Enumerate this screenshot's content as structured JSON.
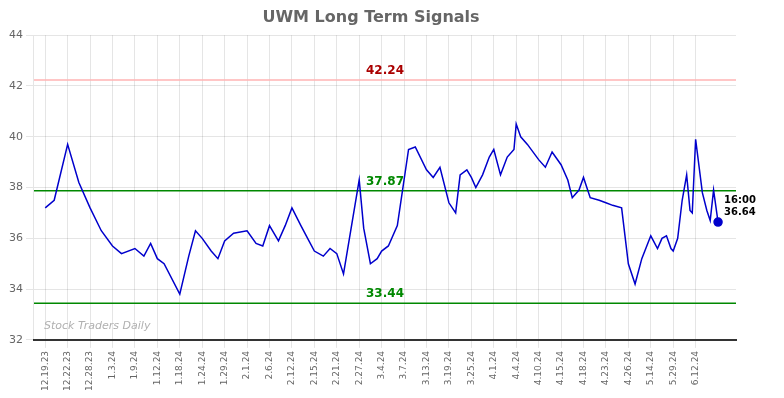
{
  "chart_data": {
    "type": "line",
    "title": "UWM Long Term Signals",
    "x": [
      0,
      0.4,
      1.0,
      1.5,
      2.0,
      2.5,
      3.0,
      3.4,
      4.0,
      4.4,
      4.7,
      5.0,
      5.3,
      6.0,
      6.4,
      6.7,
      7.0,
      7.4,
      7.7,
      8.0,
      8.4,
      9.0,
      9.4,
      9.7,
      10.0,
      10.4,
      10.7,
      11.0,
      11.4,
      11.7,
      12.0,
      12.4,
      12.7,
      13.0,
      13.3,
      14.0,
      14.2,
      14.5,
      14.8,
      15.0,
      15.3,
      15.7,
      16.0,
      16.2,
      16.5,
      17.0,
      17.3,
      17.6,
      18.0,
      18.3,
      18.5,
      18.8,
      19.0,
      19.2,
      19.5,
      19.8,
      20.0,
      20.3,
      20.6,
      20.9,
      21.0,
      21.2,
      21.5,
      22.0,
      22.3,
      22.6,
      23.0,
      23.3,
      23.5,
      23.8,
      24.0,
      24.3,
      24.7,
      25.0,
      25.3,
      25.7,
      26.0,
      26.3,
      26.6,
      27.0,
      27.3,
      27.5,
      27.7,
      27.9,
      28.0,
      28.2,
      28.4,
      28.6,
      28.75,
      28.85,
      29.0,
      29.3,
      29.5,
      29.65,
      29.8,
      30.0
    ],
    "values": [
      37.2,
      37.5,
      39.7,
      38.2,
      37.2,
      36.3,
      35.7,
      35.4,
      35.6,
      35.3,
      35.8,
      35.2,
      35.0,
      33.8,
      35.3,
      36.3,
      36.0,
      35.5,
      35.2,
      35.9,
      36.2,
      36.3,
      35.8,
      35.7,
      36.5,
      35.9,
      36.5,
      37.2,
      36.5,
      36.0,
      35.5,
      35.3,
      35.6,
      35.4,
      34.6,
      38.3,
      36.4,
      35.0,
      35.2,
      35.5,
      35.7,
      36.5,
      38.3,
      39.5,
      39.6,
      38.7,
      38.4,
      38.8,
      37.4,
      37.0,
      38.5,
      38.7,
      38.4,
      38.0,
      38.5,
      39.2,
      39.5,
      38.5,
      39.2,
      39.5,
      40.5,
      40.0,
      39.7,
      39.1,
      38.8,
      39.4,
      38.9,
      38.3,
      37.6,
      37.9,
      38.4,
      37.6,
      37.5,
      37.4,
      37.3,
      37.2,
      35.0,
      34.2,
      35.2,
      36.1,
      35.6,
      36.0,
      36.1,
      35.6,
      35.5,
      36.0,
      37.5,
      38.5,
      37.1,
      37.0,
      39.9,
      37.8,
      37.1,
      36.7,
      37.9,
      36.64
    ],
    "color": "#0000cc",
    "xlim": [
      -0.5,
      30.8
    ],
    "xticks": [
      {
        "value": 0,
        "label": "12.19.23"
      },
      {
        "value": 1,
        "label": "12.22.23"
      },
      {
        "value": 2,
        "label": "12.28.23"
      },
      {
        "value": 3,
        "label": "1.3.24"
      },
      {
        "value": 4,
        "label": "1.9.24"
      },
      {
        "value": 5,
        "label": "1.12.24"
      },
      {
        "value": 6,
        "label": "1.18.24"
      },
      {
        "value": 7,
        "label": "1.24.24"
      },
      {
        "value": 8,
        "label": "1.29.24"
      },
      {
        "value": 9,
        "label": "2.1.24"
      },
      {
        "value": 10,
        "label": "2.6.24"
      },
      {
        "value": 11,
        "label": "2.12.24"
      },
      {
        "value": 12,
        "label": "2.15.24"
      },
      {
        "value": 13,
        "label": "2.21.24"
      },
      {
        "value": 14,
        "label": "2.27.24"
      },
      {
        "value": 15,
        "label": "3.4.24"
      },
      {
        "value": 16,
        "label": "3.7.24"
      },
      {
        "value": 17,
        "label": "3.13.24"
      },
      {
        "value": 18,
        "label": "3.19.24"
      },
      {
        "value": 19,
        "label": "3.25.24"
      },
      {
        "value": 20,
        "label": "4.1.24"
      },
      {
        "value": 21,
        "label": "4.4.24"
      },
      {
        "value": 22,
        "label": "4.10.24"
      },
      {
        "value": 23,
        "label": "4.15.24"
      },
      {
        "value": 24,
        "label": "4.18.24"
      },
      {
        "value": 25,
        "label": "4.23.24"
      },
      {
        "value": 26,
        "label": "4.26.24"
      },
      {
        "value": 27,
        "label": "5.14.24"
      },
      {
        "value": 28,
        "label": "5.29.24"
      },
      {
        "value": 29,
        "label": "6.12.24"
      }
    ],
    "ylim": [
      32,
      44
    ],
    "yticks": [
      32,
      34,
      36,
      38,
      40,
      42,
      44
    ],
    "grid": true,
    "hlines": [
      {
        "value": 42.24,
        "label": "42.24",
        "color": "#ffb3b3",
        "label_color": "#aa0000"
      },
      {
        "value": 37.87,
        "label": "37.87",
        "color": "#008800",
        "label_color": "#008800"
      },
      {
        "value": 33.44,
        "label": "33.44",
        "color": "#008800",
        "label_color": "#008800"
      }
    ],
    "annotations": [
      {
        "x": 30.0,
        "y": 36.64,
        "text": "16:00\n36.64"
      }
    ],
    "watermark": "Stock Traders Daily"
  }
}
